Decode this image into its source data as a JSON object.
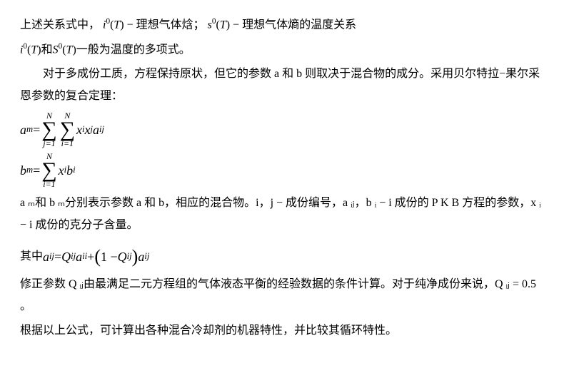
{
  "p1_a": "上述关系式中，",
  "p1_b": " − 理想气体焓；",
  "p1_c": " − 理想气体熵的温度关系",
  "p2_a": "和",
  "p2_b": "一般为温度的多项式。",
  "p3": "对于多成份工质，方程保持原状，但它的参数 a 和 b 则取决于混合物的成分。采用贝尔特拉−果尔采恩参数的复合定理：",
  "eq1_lhs": "a",
  "eq1_lsub": "m",
  "eq": " = ",
  "sum1_top": "N",
  "sum1_bot": "j=1",
  "sum2_top": "N",
  "sum2_bot": "i=1",
  "eq1_term_x": "x",
  "eq1_term_i": "i",
  "eq1_term_j": "j",
  "eq1_term_a": "a",
  "eq1_term_ij": "ij",
  "eq2_lhs": "b",
  "eq2_lsub": "m",
  "sum3_top": "N",
  "sum3_bot": "i=1",
  "eq2_term_b": "b",
  "p4": "a ₘ和 b ₘ分别表示参数 a 和 b，相应的混合物。i，j − 成份编号，a ᵢⱼ，b ᵢ − i 成份的 P K B 方程的参数，x ᵢ − i 成份的克分子含量。",
  "p5_a": "其中 ",
  "p5_mid": " + ",
  "p5_one": "1 − ",
  "Q": "Q",
  "p6": "修正参数 Q ᵢⱼ由最满足二元方程组的气体液态平衡的经验数据的条件计算。对于纯净成份来说，Q ᵢⱼ = 0.5 。",
  "p7": "根据以上公式，可计算出各种混合冷却剂的机器特性，并比较其循环特性。",
  "i_sym": "i",
  "s_sym": "s",
  "S_sym": "S",
  "T_sym": "T",
  "zero": "0"
}
